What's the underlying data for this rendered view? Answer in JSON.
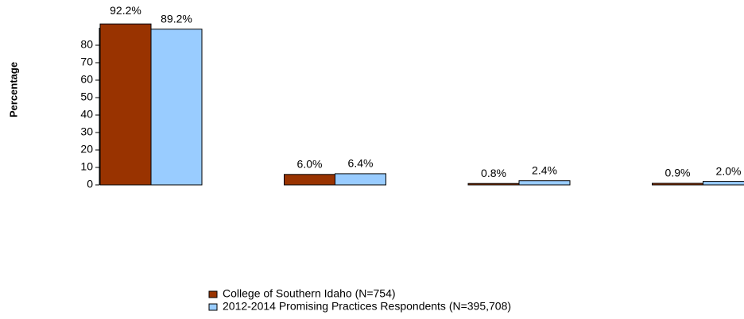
{
  "chart_data": {
    "type": "bar",
    "y_label": "Percentage",
    "categories": [
      null,
      null,
      null,
      null
    ],
    "series": [
      {
        "name": "College of Southern Idaho (N=754)",
        "color": "#993300",
        "values": [
          92.2,
          6.0,
          0.8,
          0.9
        ],
        "value_labels": [
          "92.2%",
          "6.0%",
          "0.8%",
          "0.9%"
        ]
      },
      {
        "name": "2012-2014 Promising Practices Respondents (N=395,708)",
        "color": "#99ccff",
        "values": [
          89.2,
          6.4,
          2.4,
          2.0
        ],
        "value_labels": [
          "89.2%",
          "6.4%",
          "2.4%",
          "2.0%"
        ]
      }
    ],
    "ylim": [
      0,
      100
    ],
    "yticks": [
      0,
      10,
      20,
      30,
      40,
      50,
      60,
      70,
      80
    ]
  }
}
